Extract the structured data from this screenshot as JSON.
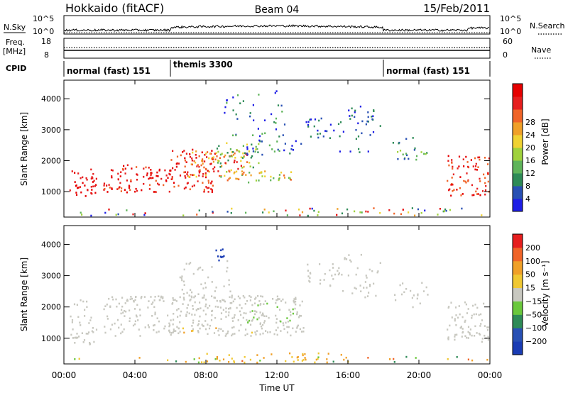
{
  "header": {
    "station": "Hokkaido (fitACF)",
    "beam": "Beam 04",
    "date": "15/Feb/2011"
  },
  "strip_labels": {
    "nsky": "N.Sky",
    "freq_top": "Freq.",
    "freq_unit": "[MHz]",
    "cpid": "CPID",
    "nsearch": "N.Search",
    "nave": "Nave"
  },
  "strip_ticks": {
    "nsky_high": "10^5",
    "nsky_low": "10^0",
    "nsearch_high": "10^5",
    "nsearch_low": "10^0",
    "freq_high": "18",
    "freq_low": "8",
    "nave_high": "60",
    "nave_low": "0"
  },
  "cpid_segments": [
    {
      "label": "normal (fast) 151",
      "start_h": 0,
      "end_h": 6
    },
    {
      "label": "themis 3300",
      "start_h": 6,
      "end_h": 18
    },
    {
      "label": "normal (fast) 151",
      "start_h": 18,
      "end_h": 24
    }
  ],
  "chart_data": [
    {
      "type": "heatmap",
      "parameter": "Power",
      "ylabel": "Slant Range [km]",
      "xlabel": "Time UT",
      "x_range_hours": [
        0,
        24
      ],
      "ylim_km": [
        180,
        4600
      ],
      "y_ticks": [
        "1000",
        "2000",
        "3000",
        "4000"
      ],
      "x_ticks": [
        "00:00",
        "04:00",
        "08:00",
        "12:00",
        "16:00",
        "20:00",
        "00:00"
      ],
      "colorbar": {
        "label": "Power [dB]",
        "tick_labels": [
          "4",
          "8",
          "12",
          "16",
          "20",
          "24",
          "28"
        ],
        "colors": [
          "#1e1ee6",
          "#2850b4",
          "#2e8b57",
          "#5fb45a",
          "#a0d23c",
          "#f0d232",
          "#f0a028",
          "#f06428",
          "#e61e1e",
          "#e60000"
        ]
      }
    },
    {
      "type": "heatmap",
      "parameter": "Velocity",
      "ylabel": "Slant Range [km]",
      "xlabel": "Time UT",
      "x_range_hours": [
        0,
        24
      ],
      "ylim_km": [
        180,
        4600
      ],
      "y_ticks": [
        "1000",
        "2000",
        "3000",
        "4000"
      ],
      "x_ticks": [
        "00:00",
        "04:00",
        "08:00",
        "12:00",
        "16:00",
        "20:00",
        "00:00"
      ],
      "colorbar": {
        "label": "Velocity [m s⁻¹]",
        "tick_labels": [
          "200",
          "100",
          "50",
          "15",
          "−15",
          "−50",
          "−100",
          "−200"
        ],
        "colors": [
          "#1a3cb4",
          "#2850b4",
          "#2e8b57",
          "#6ac83c",
          "#c8c8c0",
          "#f0c832",
          "#f0a028",
          "#f06428",
          "#e61e1e"
        ]
      }
    }
  ]
}
